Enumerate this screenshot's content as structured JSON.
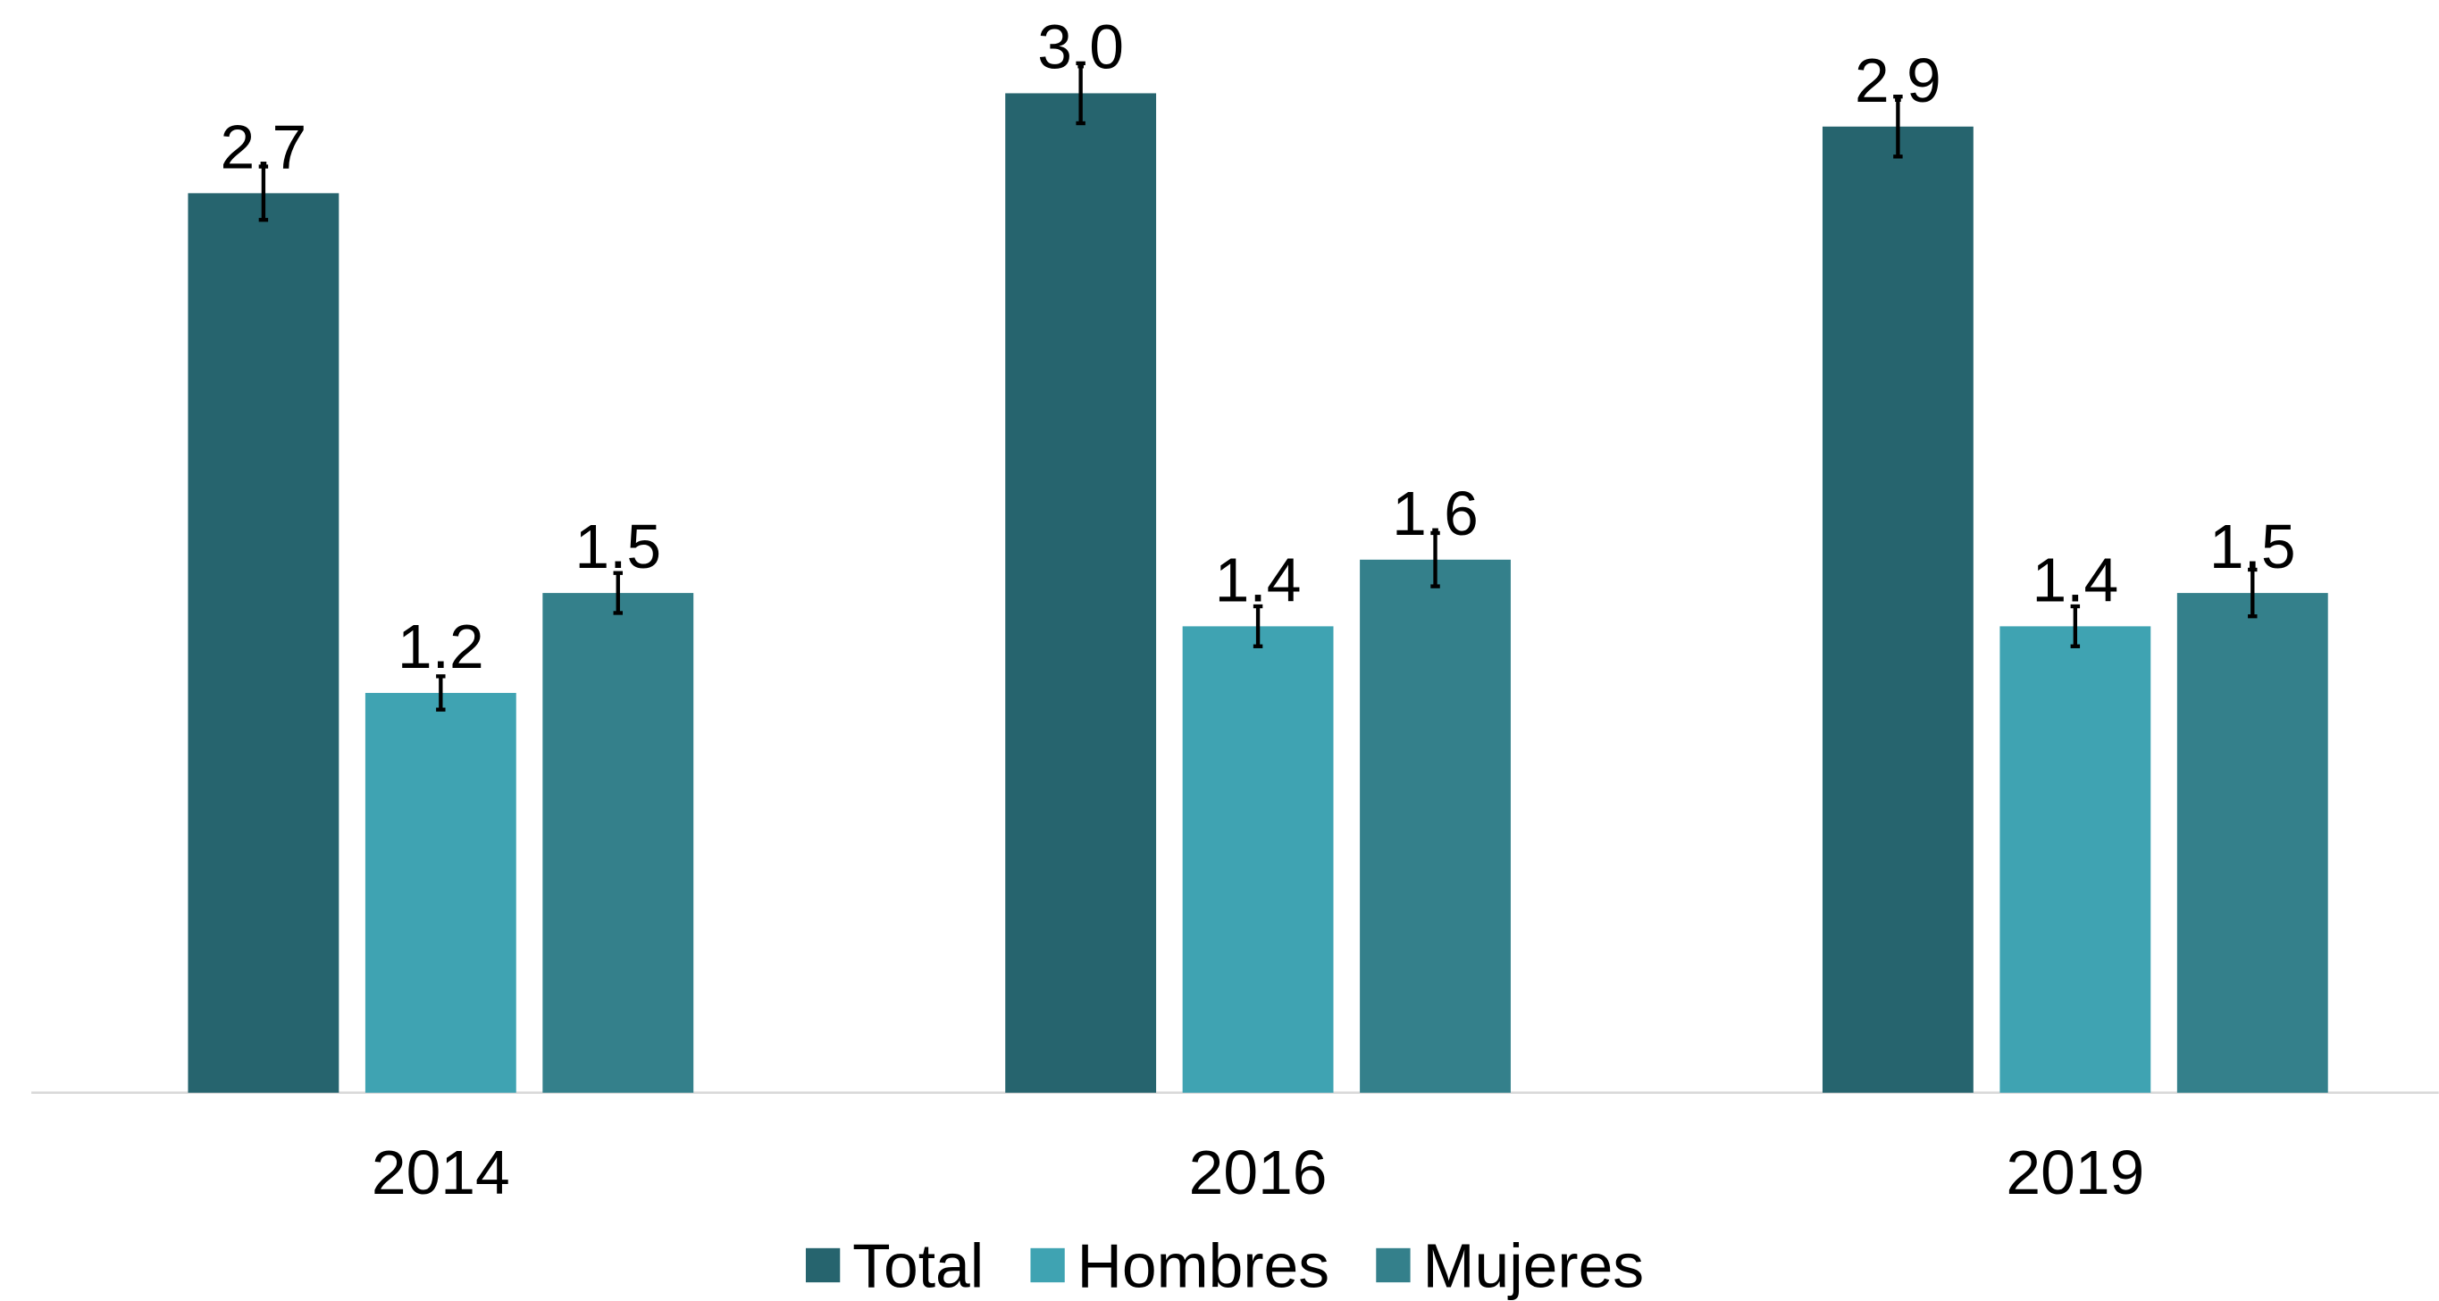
{
  "chart_data": {
    "type": "bar",
    "categories": [
      "2014",
      "2016",
      "2019"
    ],
    "series": [
      {
        "name": "Total",
        "color": "#26646e",
        "values": [
          2.7,
          3.0,
          2.9
        ],
        "value_labels": [
          "2.7",
          "3.0",
          "2.9"
        ],
        "errors": [
          0.08,
          0.09,
          0.09
        ]
      },
      {
        "name": "Hombres",
        "color": "#3fa3b2",
        "values": [
          1.2,
          1.4,
          1.4
        ],
        "value_labels": [
          "1.2",
          "1.4",
          "1.4"
        ],
        "errors": [
          0.05,
          0.06,
          0.06
        ]
      },
      {
        "name": "Mujeres",
        "color": "#34808b",
        "values": [
          1.5,
          1.6,
          1.5
        ],
        "value_labels": [
          "1.5",
          "1.6",
          "1.5"
        ],
        "errors": [
          0.06,
          0.08,
          0.07
        ]
      }
    ],
    "ylim": [
      0,
      3.0
    ],
    "legend": "bottom"
  }
}
